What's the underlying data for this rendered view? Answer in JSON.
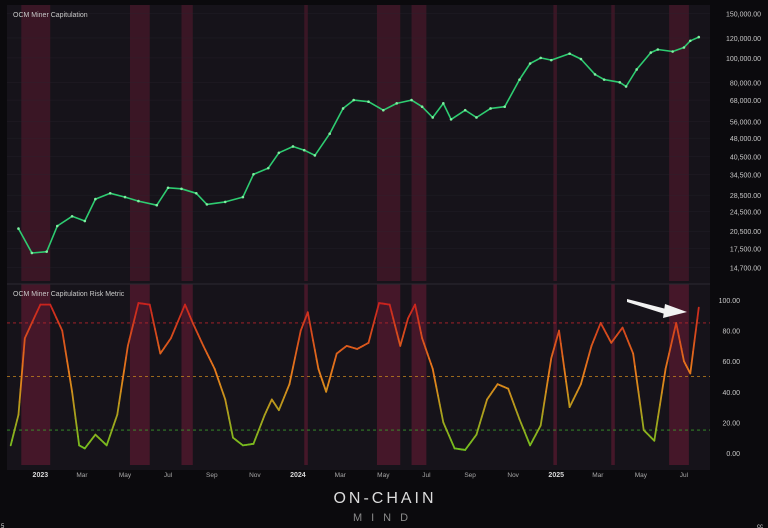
{
  "brand": {
    "line1": "ON-CHAIN",
    "line2": "MIND"
  },
  "player_bar": {
    "left_glyph": "5",
    "right_glyph": "cc"
  },
  "annotation": {
    "arrow_target": "latest risk reading"
  },
  "colors": {
    "background": "#16131a",
    "grid": "#2a2630",
    "price": "#2ecc71",
    "band": "#5a1a30",
    "risk_high": "#c81e1e",
    "risk_mid": "#e8811c",
    "risk_low": "#6cc21f",
    "line_high": "#b4232a",
    "line_mid": "#c6861f",
    "line_low": "#3a9a2a",
    "text": "#c8c8c8"
  },
  "chart_data": [
    {
      "type": "line",
      "title": "OCM Miner Capitulation",
      "scale": "log",
      "ylim": [
        13000,
        155000
      ],
      "y_ticks": [
        "150,000.00",
        "120,000.00",
        "100,000.00",
        "80,000.00",
        "68,000.00",
        "56,000.00",
        "48,000.00",
        "40,500.00",
        "34,500.00",
        "28,500.00",
        "24,500.00",
        "20,500.00",
        "17,500.00",
        "14,700.00"
      ],
      "x": [
        "2022-12-01",
        "2022-12-20",
        "2023-01-10",
        "2023-01-25",
        "2023-02-15",
        "2023-03-05",
        "2023-03-20",
        "2023-04-10",
        "2023-05-01",
        "2023-05-20",
        "2023-06-15",
        "2023-07-01",
        "2023-07-20",
        "2023-08-10",
        "2023-08-25",
        "2023-09-20",
        "2023-10-15",
        "2023-10-30",
        "2023-11-20",
        "2023-12-05",
        "2023-12-25",
        "2024-01-10",
        "2024-01-25",
        "2024-02-15",
        "2024-03-05",
        "2024-03-20",
        "2024-04-10",
        "2024-05-01",
        "2024-05-20",
        "2024-06-10",
        "2024-06-25",
        "2024-07-10",
        "2024-07-25",
        "2024-08-05",
        "2024-08-25",
        "2024-09-10",
        "2024-09-30",
        "2024-10-20",
        "2024-11-10",
        "2024-11-25",
        "2024-12-10",
        "2024-12-25",
        "2025-01-20",
        "2025-02-05",
        "2025-02-25",
        "2025-03-10",
        "2025-04-01",
        "2025-04-10",
        "2025-04-25",
        "2025-05-15",
        "2025-05-25",
        "2025-06-15",
        "2025-07-01",
        "2025-07-10",
        "2025-07-22"
      ],
      "values": [
        21000,
        16800,
        17000,
        21500,
        23500,
        22500,
        27500,
        29000,
        28000,
        27000,
        26000,
        30500,
        30200,
        29000,
        26200,
        26800,
        28000,
        34500,
        36500,
        42000,
        44500,
        43000,
        41000,
        50000,
        63000,
        68000,
        67000,
        62000,
        66000,
        68000,
        64000,
        58000,
        66000,
        57000,
        62000,
        58000,
        63000,
        64000,
        82000,
        95000,
        100000,
        98000,
        104000,
        99000,
        86000,
        82000,
        80000,
        77000,
        90000,
        105000,
        108000,
        106000,
        110000,
        117000,
        121000
      ],
      "shaded_periods": [
        [
          "2022-12-05",
          "2023-01-15"
        ],
        [
          "2023-05-08",
          "2023-06-05"
        ],
        [
          "2023-07-20",
          "2023-08-05"
        ],
        [
          "2024-01-10",
          "2024-01-15"
        ],
        [
          "2024-04-22",
          "2024-05-25"
        ],
        [
          "2024-06-10",
          "2024-07-01"
        ],
        [
          "2024-12-28",
          "2025-01-02"
        ],
        [
          "2025-03-20",
          "2025-03-25"
        ],
        [
          "2025-06-10",
          "2025-07-08"
        ]
      ]
    },
    {
      "type": "line",
      "title": "OCM Miner Capitulation Risk Metric",
      "ylim": [
        0,
        100
      ],
      "y_ticks": [
        "100.00",
        "80.00",
        "60.00",
        "40.00",
        "20.00",
        "0.00"
      ],
      "threshold_lines": [
        85,
        50,
        15
      ],
      "x_tick_labels": [
        "2023",
        "Mar",
        "May",
        "Jul",
        "Sep",
        "Nov",
        "2024",
        "Mar",
        "May",
        "Jul",
        "Sep",
        "Nov",
        "2025",
        "Mar",
        "May",
        "Jul"
      ],
      "x_tick_dates": [
        "2023-01-01",
        "2023-03-01",
        "2023-05-01",
        "2023-07-01",
        "2023-09-01",
        "2023-11-01",
        "2024-01-01",
        "2024-03-01",
        "2024-05-01",
        "2024-07-01",
        "2024-09-01",
        "2024-11-01",
        "2025-01-01",
        "2025-03-01",
        "2025-05-01",
        "2025-07-01"
      ],
      "x": [
        "2022-11-20",
        "2022-12-01",
        "2022-12-10",
        "2023-01-01",
        "2023-01-15",
        "2023-02-01",
        "2023-02-15",
        "2023-02-25",
        "2023-03-05",
        "2023-03-20",
        "2023-04-05",
        "2023-04-20",
        "2023-05-05",
        "2023-05-20",
        "2023-06-05",
        "2023-06-20",
        "2023-07-05",
        "2023-07-25",
        "2023-08-05",
        "2023-08-20",
        "2023-09-05",
        "2023-09-20",
        "2023-10-01",
        "2023-10-15",
        "2023-10-30",
        "2023-11-15",
        "2023-11-25",
        "2023-12-05",
        "2023-12-20",
        "2024-01-05",
        "2024-01-15",
        "2024-01-30",
        "2024-02-10",
        "2024-02-25",
        "2024-03-10",
        "2024-03-25",
        "2024-04-10",
        "2024-04-25",
        "2024-05-10",
        "2024-05-25",
        "2024-06-05",
        "2024-06-15",
        "2024-06-25",
        "2024-07-10",
        "2024-07-25",
        "2024-08-10",
        "2024-08-25",
        "2024-09-10",
        "2024-09-25",
        "2024-10-10",
        "2024-10-25",
        "2024-11-10",
        "2024-11-25",
        "2024-12-10",
        "2024-12-25",
        "2025-01-05",
        "2025-01-20",
        "2025-02-05",
        "2025-02-20",
        "2025-03-05",
        "2025-03-20",
        "2025-04-05",
        "2025-04-20",
        "2025-05-05",
        "2025-05-20",
        "2025-06-05",
        "2025-06-20",
        "2025-07-01",
        "2025-07-10",
        "2025-07-22"
      ],
      "values": [
        5,
        25,
        75,
        97,
        97,
        80,
        40,
        5,
        3,
        12,
        5,
        25,
        70,
        98,
        97,
        65,
        75,
        97,
        85,
        70,
        55,
        35,
        10,
        5,
        6,
        25,
        35,
        28,
        45,
        80,
        92,
        55,
        40,
        65,
        70,
        68,
        72,
        98,
        97,
        70,
        88,
        97,
        75,
        55,
        20,
        3,
        2,
        12,
        35,
        45,
        42,
        22,
        5,
        18,
        62,
        80,
        30,
        45,
        70,
        85,
        72,
        82,
        65,
        15,
        8,
        55,
        85,
        60,
        52,
        95
      ]
    }
  ]
}
